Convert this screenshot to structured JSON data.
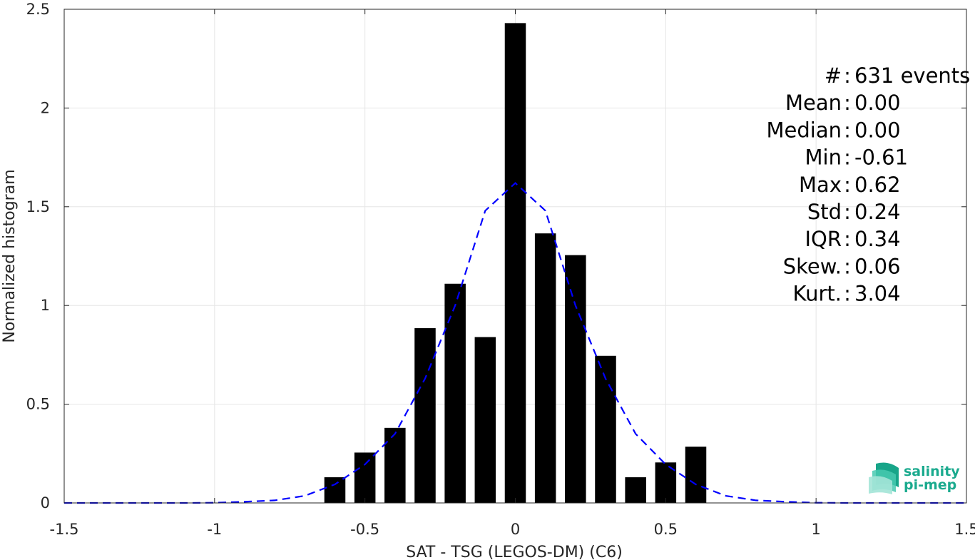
{
  "chart_data": {
    "type": "bar",
    "xlabel": "SAT - TSG (LEGOS-DM) (C6)",
    "ylabel": "Normalized histogram",
    "xlim": [
      -1.5,
      1.5
    ],
    "ylim": [
      0,
      2.5
    ],
    "xticks": [
      -1.5,
      -1,
      -0.5,
      0,
      0.5,
      1,
      1.5
    ],
    "xtick_labels": [
      "-1.5",
      "-1",
      "-0.5",
      "0",
      "0.5",
      "1",
      "1.5"
    ],
    "yticks": [
      0,
      0.5,
      1,
      1.5,
      2,
      2.5
    ],
    "ytick_labels": [
      "0",
      "0.5",
      "1",
      "1.5",
      "2",
      "2.5"
    ],
    "grid": true,
    "bin_width": 0.1,
    "bar_color": "#000000",
    "bars": {
      "x": [
        -0.6,
        -0.5,
        -0.4,
        -0.3,
        -0.2,
        -0.1,
        0.0,
        0.1,
        0.2,
        0.3,
        0.4,
        0.5,
        0.6
      ],
      "values": [
        0.13,
        0.255,
        0.38,
        0.885,
        1.11,
        0.84,
        2.43,
        1.365,
        1.255,
        0.745,
        0.13,
        0.205,
        0.285
      ]
    },
    "fit_curve": {
      "style": "dashed",
      "color": "#0000ff",
      "x": [
        -1.5,
        -1.4,
        -1.3,
        -1.2,
        -1.1,
        -1.0,
        -0.9,
        -0.8,
        -0.7,
        -0.6,
        -0.5,
        -0.4,
        -0.3,
        -0.2,
        -0.1,
        0.0,
        0.1,
        0.2,
        0.3,
        0.4,
        0.5,
        0.6,
        0.7,
        0.8,
        0.9,
        1.0,
        1.1,
        1.2,
        1.3,
        1.4,
        1.5
      ],
      "y": [
        0,
        0,
        0,
        0,
        0,
        0.001,
        0.006,
        0.013,
        0.036,
        0.094,
        0.195,
        0.35,
        0.63,
        1.0,
        1.48,
        1.62,
        1.48,
        1.0,
        0.63,
        0.35,
        0.195,
        0.094,
        0.036,
        0.013,
        0.006,
        0.001,
        0,
        0,
        0,
        0,
        0
      ]
    },
    "stats": [
      {
        "label": "#  ",
        "value": "631 events"
      },
      {
        "label": "Mean",
        "value": "0.00"
      },
      {
        "label": "Median",
        "value": "0.00"
      },
      {
        "label": "Min",
        "value": "-0.61"
      },
      {
        "label": "Max",
        "value": "0.62"
      },
      {
        "label": "Std",
        "value": "0.24"
      },
      {
        "label": "IQR",
        "value": "0.34"
      },
      {
        "label": "Skew.",
        "value": "0.06"
      },
      {
        "label": "Kurt.",
        "value": "3.04"
      }
    ]
  },
  "logo": {
    "line1": "salinity",
    "line2": "pi-mep",
    "color": "#1aaa8e"
  }
}
